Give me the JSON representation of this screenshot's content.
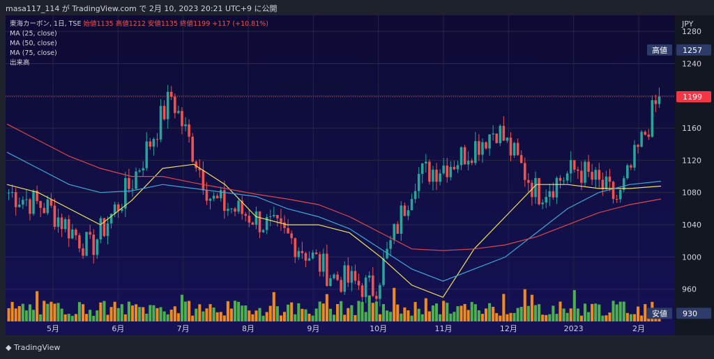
{
  "header": {
    "publish_text": "masa117_114 が TradingView.com で 2月 10, 2023 20:21 UTC+9 に公開"
  },
  "legend": {
    "symbol_line_prefix": "東海カーボン, 1日, TSE",
    "ohlc_text": "始値1135  高値1212  安値1135  終値1199  +117 (+10.81%)",
    "ma25": "MA (25, close)",
    "ma50": "MA (50, close)",
    "ma75": "MA (75, close)",
    "volume": "出来高"
  },
  "footer": {
    "brand": "TradingView"
  },
  "colors": {
    "up": "#26a69a",
    "down": "#ef5350",
    "ma25": "#f2e35b",
    "ma50": "#3fa7d6",
    "ma75": "#e0464b",
    "vol_up": "#4caf50",
    "vol_down": "#ef8a1e"
  },
  "chart_data": {
    "type": "candlestick",
    "title": "東海カーボン, 1日, TSE",
    "currency": "JPY",
    "ylim": [
      920,
      1300
    ],
    "y_ticks": [
      1280,
      1240,
      1200,
      1160,
      1120,
      1080,
      1040,
      1000,
      960
    ],
    "x_labels": [
      "5月",
      "6月",
      "7月",
      "8月",
      "9月",
      "10月",
      "11月",
      "12月",
      "2023",
      "2月"
    ],
    "price_tags": [
      {
        "label": "高値",
        "value": 1257
      },
      {
        "label": "",
        "value": 1199
      },
      {
        "label": "安値",
        "value": 930
      }
    ],
    "last_close": 1199,
    "ohlc_anchor": [
      {
        "m": "4月",
        "price": 1080
      },
      {
        "m": "5月",
        "price": 1060
      },
      {
        "m": "5月末",
        "price": 1010
      },
      {
        "m": "6月",
        "price": 1090
      },
      {
        "m": "6月中",
        "price": 1200
      },
      {
        "m": "7月",
        "price": 1070
      },
      {
        "m": "8月",
        "price": 1050
      },
      {
        "m": "9月",
        "price": 1020
      },
      {
        "m": "10月",
        "price": 975
      },
      {
        "m": "11月",
        "price": 960
      },
      {
        "m": "11月中",
        "price": 1100
      },
      {
        "m": "12月",
        "price": 1120
      },
      {
        "m": "12月中",
        "price": 1160
      },
      {
        "m": "2023",
        "price": 1080
      },
      {
        "m": "1月",
        "price": 1110
      },
      {
        "m": "2月",
        "price": 1070
      },
      {
        "m": "2月10日",
        "price": 1199
      }
    ],
    "series": [
      {
        "name": "MA (25, close)",
        "values": [
          1090,
          1080,
          1060,
          1040,
          1070,
          1110,
          1115,
          1090,
          1050,
          1040,
          1040,
          1030,
          1000,
          965,
          950,
          1010,
          1050,
          1090,
          1090,
          1085,
          1085,
          1088
        ]
      },
      {
        "name": "MA (50, close)",
        "values": [
          1130,
          1110,
          1090,
          1080,
          1082,
          1090,
          1085,
          1080,
          1075,
          1060,
          1050,
          1035,
          1010,
          985,
          970,
          985,
          1000,
          1030,
          1060,
          1080,
          1090,
          1094
        ]
      },
      {
        "name": "MA (75, close)",
        "values": [
          1165,
          1145,
          1125,
          1110,
          1100,
          1100,
          1092,
          1085,
          1078,
          1072,
          1065,
          1050,
          1030,
          1010,
          1008,
          1010,
          1015,
          1025,
          1040,
          1055,
          1065,
          1072
        ]
      }
    ]
  }
}
